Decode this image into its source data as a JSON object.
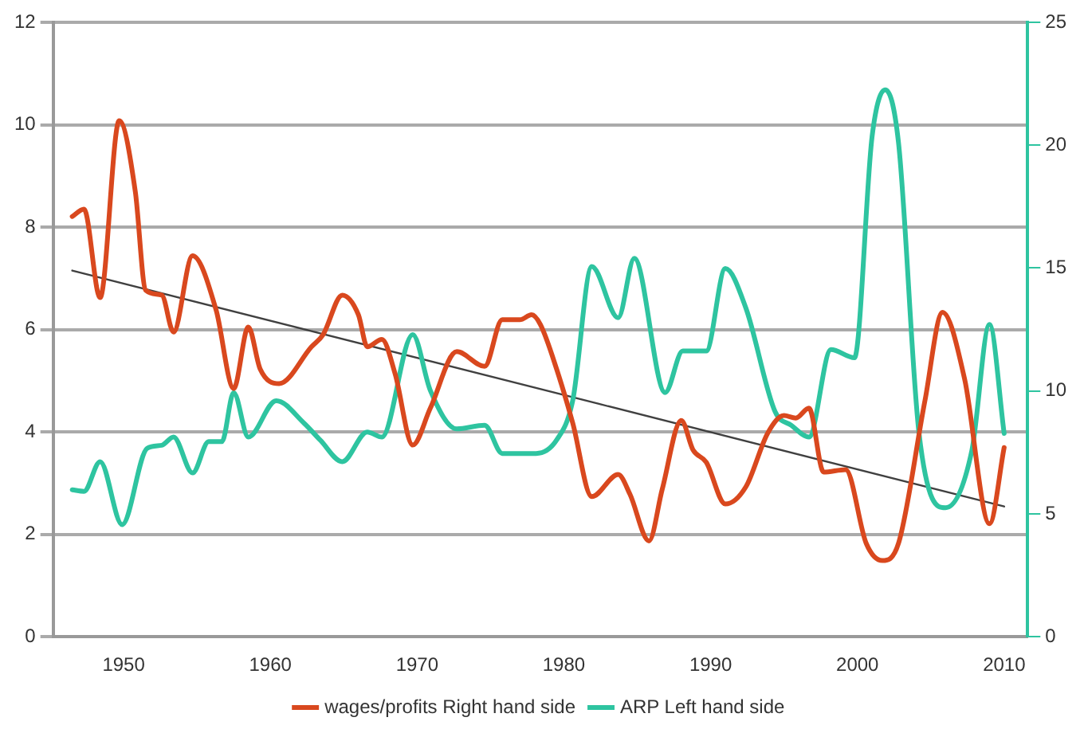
{
  "chart_data": {
    "type": "line",
    "xlim": [
      1945.2,
      2011.6
    ],
    "xticks": [
      1950,
      1960,
      1970,
      1980,
      1990,
      2000,
      2010
    ],
    "ylim": [
      0,
      12
    ],
    "yticks": [
      0,
      2,
      4,
      6,
      8,
      10,
      12
    ],
    "y2lim": [
      0,
      25
    ],
    "y2ticks": [
      0,
      5,
      10,
      15,
      20,
      25
    ],
    "grid": "y",
    "legend": "bottom",
    "marker": "none",
    "line_style": "solid",
    "series": [
      {
        "name": "wages/profits Right hand side",
        "color": "#d9481e",
        "axis": "y2",
        "x": [
          1946.5,
          1947.3,
          1948.4,
          1949.7,
          1950.8,
          1951.5,
          1952.6,
          1953.4,
          1954.7,
          1956.3,
          1957.5,
          1958.5,
          1959.3,
          1960.6,
          1962.8,
          1963.6,
          1964.9,
          1966,
          1966.6,
          1967.6,
          1968.5,
          1969.7,
          1970.9,
          1972.7,
          1974.6,
          1975.8,
          1977,
          1977.8,
          1978.4,
          1979.5,
          1980.6,
          1981.9,
          1983.7,
          1984.5,
          1985.8,
          1986.7,
          1988,
          1988.8,
          1989.7,
          1991,
          1992.4,
          1993.9,
          1995,
          1995.8,
          1996.7,
          1997.7,
          1999.2,
          2000.6,
          2001.7,
          2002.8,
          2004.6,
          2005.8,
          2007.3,
          2009,
          2010
        ],
        "values": [
          17.1,
          17.4,
          13.8,
          21.0,
          18.1,
          14.1,
          13.9,
          12.4,
          15.5,
          13.3,
          10.1,
          12.6,
          10.9,
          10.3,
          11.8,
          12.3,
          13.9,
          13.1,
          11.8,
          12.1,
          10.7,
          7.8,
          9.3,
          11.6,
          11.0,
          12.9,
          12.9,
          13.1,
          12.7,
          10.9,
          8.7,
          5.7,
          6.6,
          5.8,
          3.9,
          6.0,
          8.8,
          7.6,
          7.1,
          5.4,
          6.1,
          8.3,
          9.0,
          8.9,
          9.3,
          6.7,
          6.8,
          3.8,
          3.1,
          3.8,
          9.6,
          13.2,
          10.5,
          4.6,
          7.7
        ]
      },
      {
        "name": "ARP Left hand side",
        "color": "#2ec4a0",
        "x": [
          1946.5,
          1947.3,
          1948.4,
          1949.9,
          1951.6,
          1952.6,
          1953.4,
          1954.7,
          1955.8,
          1956.7,
          1957.5,
          1958.5,
          1960.4,
          1962.3,
          1963.4,
          1964.9,
          1966.6,
          1967.6,
          1969.7,
          1970.9,
          1972.7,
          1974.6,
          1975.8,
          1977,
          1978.1,
          1979.5,
          1980.6,
          1981.9,
          1983.7,
          1984.8,
          1986.9,
          1988.1,
          1989.7,
          1991,
          1992.4,
          1994.4,
          1995.5,
          1996.7,
          1998.2,
          1999.8,
          2001,
          2001.9,
          2002.8,
          2004.2,
          2006,
          2007.8,
          2009,
          2010
        ],
        "values": [
          2.87,
          2.84,
          3.42,
          2.19,
          3.68,
          3.74,
          3.9,
          3.2,
          3.81,
          3.81,
          4.77,
          3.9,
          4.61,
          4.17,
          3.84,
          3.42,
          4.0,
          3.9,
          5.9,
          4.81,
          4.06,
          4.13,
          3.58,
          3.58,
          3.58,
          3.84,
          4.61,
          7.23,
          6.23,
          7.39,
          4.77,
          5.58,
          5.58,
          7.19,
          6.42,
          4.39,
          4.13,
          3.9,
          5.61,
          5.45,
          9.77,
          10.68,
          9.65,
          3.97,
          2.52,
          3.64,
          6.1,
          3.97
        ]
      },
      {
        "type": "line",
        "color": "#404040",
        "axis": "y2",
        "x": [
          1946.5,
          2010
        ],
        "values": [
          14.9,
          5.3
        ]
      }
    ]
  }
}
